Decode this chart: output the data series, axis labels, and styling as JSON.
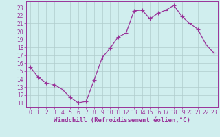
{
  "x": [
    0,
    1,
    2,
    3,
    4,
    5,
    6,
    7,
    8,
    9,
    10,
    11,
    12,
    13,
    14,
    15,
    16,
    17,
    18,
    19,
    20,
    21,
    22,
    23
  ],
  "y": [
    15.5,
    14.2,
    13.5,
    13.3,
    12.7,
    11.7,
    11.0,
    11.2,
    13.9,
    16.7,
    17.9,
    19.3,
    19.8,
    22.6,
    22.7,
    21.6,
    22.3,
    22.7,
    23.3,
    21.9,
    21.0,
    20.3,
    18.4,
    17.3
  ],
  "line_color": "#993399",
  "marker": "+",
  "marker_size": 4,
  "linewidth": 0.9,
  "bg_color": "#d0eeee",
  "grid_color": "#b0cccc",
  "xlabel": "Windchill (Refroidissement éolien,°C)",
  "xlabel_color": "#993399",
  "xlabel_fontsize": 6.5,
  "yticks": [
    11,
    12,
    13,
    14,
    15,
    16,
    17,
    18,
    19,
    20,
    21,
    22,
    23
  ],
  "xticks": [
    0,
    1,
    2,
    3,
    4,
    5,
    6,
    7,
    8,
    9,
    10,
    11,
    12,
    13,
    14,
    15,
    16,
    17,
    18,
    19,
    20,
    21,
    22,
    23
  ],
  "ylim": [
    10.5,
    23.8
  ],
  "xlim": [
    -0.5,
    23.5
  ],
  "tick_fontsize": 5.5,
  "tick_color": "#993399",
  "spine_color": "#993399"
}
